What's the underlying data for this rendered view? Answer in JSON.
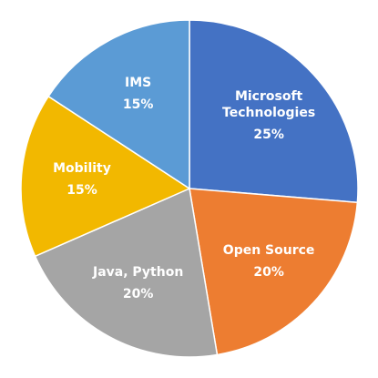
{
  "chart_data": {
    "type": "pie",
    "categories": [
      "Microsoft Technologies",
      "Open Source",
      "Java, Python",
      "Mobility",
      "IMS"
    ],
    "values": [
      25,
      20,
      20,
      15,
      15
    ],
    "value_labels": [
      "25%",
      "20%",
      "20%",
      "15%",
      "15%"
    ],
    "colors": [
      "#4472c4",
      "#ed7d31",
      "#a5a5a5",
      "#f2b800",
      "#5b9bd5"
    ]
  }
}
